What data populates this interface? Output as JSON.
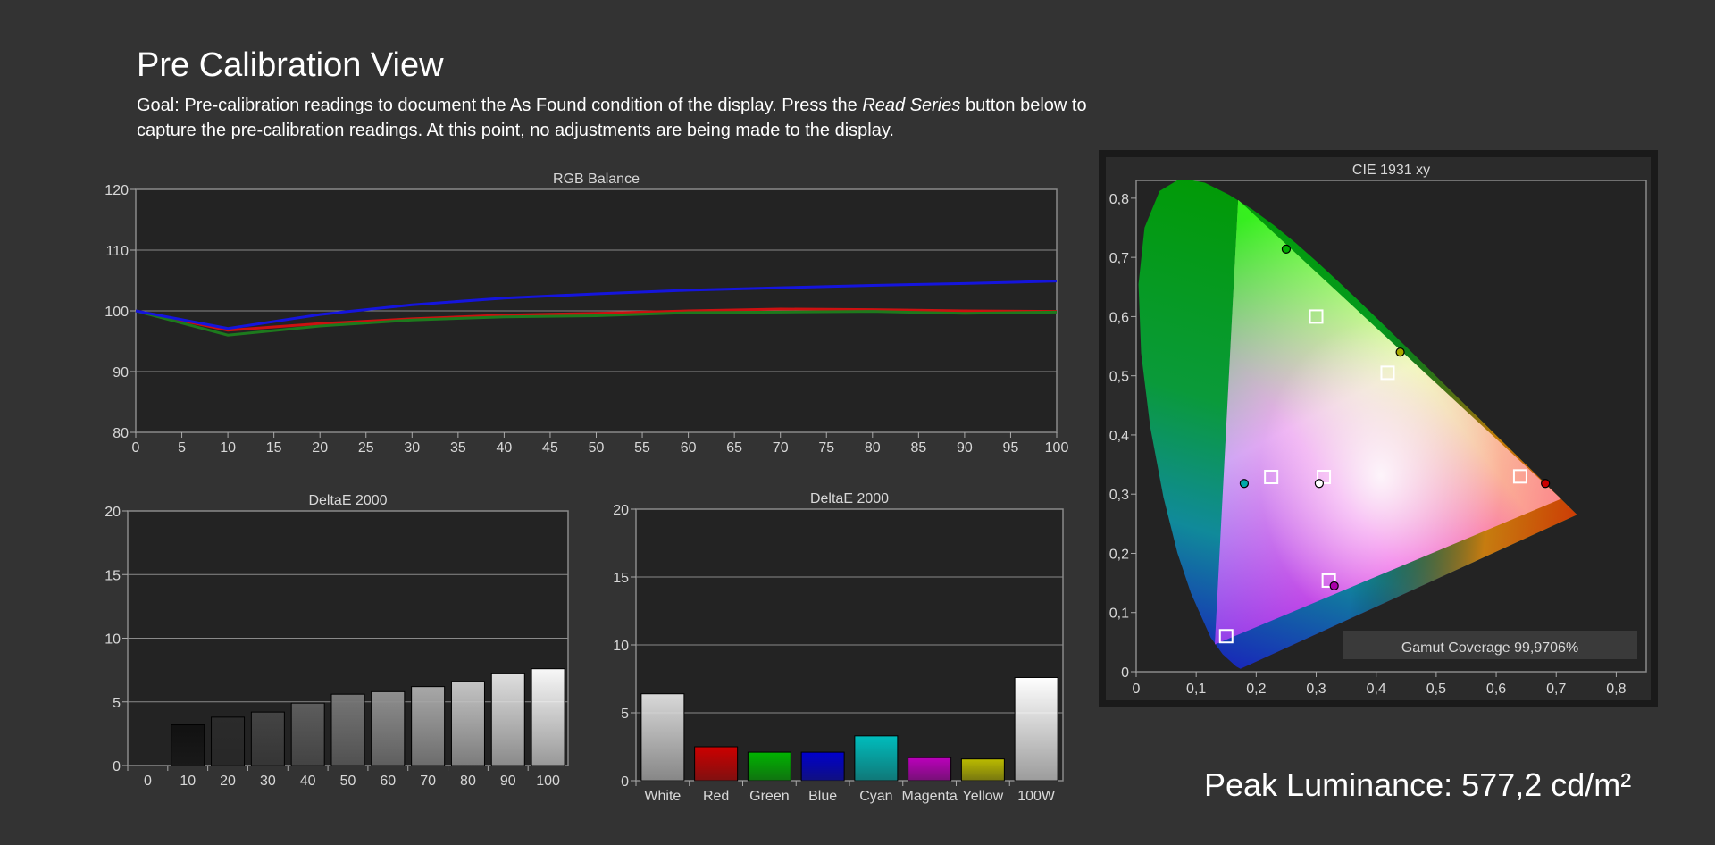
{
  "page": {
    "title": "Pre Calibration View",
    "goal_prefix": "Goal: Pre-calibration readings to document the As Found condition of the display. Press the ",
    "goal_emphasis": "Read Series",
    "goal_suffix": " button below to capture the pre-calibration readings. At this point, no adjustments are being made to the display.",
    "peak_luminance": "Peak Luminance: 577,2 cd/m²"
  },
  "chart_data": [
    {
      "id": "rgb_balance",
      "type": "line",
      "title": "RGB Balance",
      "x": [
        0,
        10,
        20,
        30,
        40,
        50,
        60,
        70,
        80,
        90,
        100
      ],
      "xticks": [
        0,
        5,
        10,
        15,
        20,
        25,
        30,
        35,
        40,
        45,
        50,
        55,
        60,
        65,
        70,
        75,
        80,
        85,
        90,
        95,
        100
      ],
      "yticks": [
        80,
        90,
        100,
        110,
        120
      ],
      "xlim": [
        0,
        100
      ],
      "ylim": [
        80,
        120
      ],
      "grid": true,
      "series": [
        {
          "color": "#cc1111",
          "values": [
            100,
            96.8,
            97.9,
            98.7,
            99.3,
            99.6,
            100.0,
            100.3,
            100.2,
            100.0,
            99.9
          ]
        },
        {
          "color": "#1d7a1d",
          "values": [
            100,
            96.0,
            97.5,
            98.5,
            99.0,
            99.2,
            99.7,
            99.8,
            99.9,
            99.6,
            99.8
          ]
        },
        {
          "color": "#1515dd",
          "values": [
            100,
            97.1,
            99.4,
            101.0,
            102.1,
            102.8,
            103.4,
            103.8,
            104.2,
            104.5,
            104.9
          ]
        }
      ]
    },
    {
      "id": "deltae_grayscale",
      "type": "bar",
      "title": "DeltaE 2000",
      "categories": [
        "0",
        "10",
        "20",
        "30",
        "40",
        "50",
        "60",
        "70",
        "80",
        "90",
        "100"
      ],
      "values": [
        0,
        3.2,
        3.8,
        4.2,
        4.9,
        5.6,
        5.8,
        6.2,
        6.6,
        7.2,
        7.6
      ],
      "colors": [
        "#000000",
        "#111111",
        "#2b2b2b",
        "#444444",
        "#5d5d5d",
        "#767676",
        "#8f8f8f",
        "#a8a8a8",
        "#c4c4c4",
        "#dedede",
        "#f8f8f8"
      ],
      "yticks": [
        0,
        5,
        10,
        15,
        20
      ],
      "ylim": [
        0,
        20
      ],
      "grid": true
    },
    {
      "id": "deltae_colors",
      "type": "bar",
      "title": "DeltaE 2000",
      "categories": [
        "White",
        "Red",
        "Green",
        "Blue",
        "Cyan",
        "Magenta",
        "Yellow",
        "100W"
      ],
      "values": [
        6.4,
        2.5,
        2.1,
        2.1,
        3.3,
        1.7,
        1.6,
        7.6
      ],
      "colors": [
        "#d8d8d8",
        "#cc0000",
        "#00b400",
        "#0000cc",
        "#00bdbd",
        "#bb00bb",
        "#bbbb00",
        "#ffffff"
      ],
      "yticks": [
        0,
        5,
        10,
        15,
        20
      ],
      "ylim": [
        0,
        20
      ],
      "grid": true
    },
    {
      "id": "cie",
      "type": "scatter",
      "title": "CIE 1931 xy",
      "xticks": [
        "0",
        "0,1",
        "0,2",
        "0,3",
        "0,4",
        "0,5",
        "0,6",
        "0,7",
        "0,8"
      ],
      "yticks": [
        "0",
        "0,1",
        "0,2",
        "0,3",
        "0,4",
        "0,5",
        "0,6",
        "0,7",
        "0,8"
      ],
      "xlim": [
        0,
        0.85
      ],
      "ylim": [
        0,
        0.83
      ],
      "gamut_triangle": [
        [
          0.708,
          0.292
        ],
        [
          0.17,
          0.797
        ],
        [
          0.131,
          0.046
        ]
      ],
      "targets": [
        {
          "x": 0.64,
          "y": 0.33
        },
        {
          "x": 0.3,
          "y": 0.6
        },
        {
          "x": 0.15,
          "y": 0.06
        },
        {
          "x": 0.225,
          "y": 0.329
        },
        {
          "x": 0.321,
          "y": 0.154
        },
        {
          "x": 0.419,
          "y": 0.505
        },
        {
          "x": 0.3127,
          "y": 0.329
        }
      ],
      "measured": [
        {
          "x": 0.682,
          "y": 0.318,
          "color": "#cc0000"
        },
        {
          "x": 0.25,
          "y": 0.714,
          "color": "#00aa00"
        },
        {
          "x": 0.18,
          "y": 0.318,
          "color": "#00aaaa"
        },
        {
          "x": 0.33,
          "y": 0.145,
          "color": "#aa00aa"
        },
        {
          "x": 0.44,
          "y": 0.54,
          "color": "#aaaa00"
        },
        {
          "x": 0.305,
          "y": 0.318,
          "color": "#ffffff"
        }
      ],
      "gamut_coverage": "Gamut Coverage 99,9706%"
    }
  ]
}
